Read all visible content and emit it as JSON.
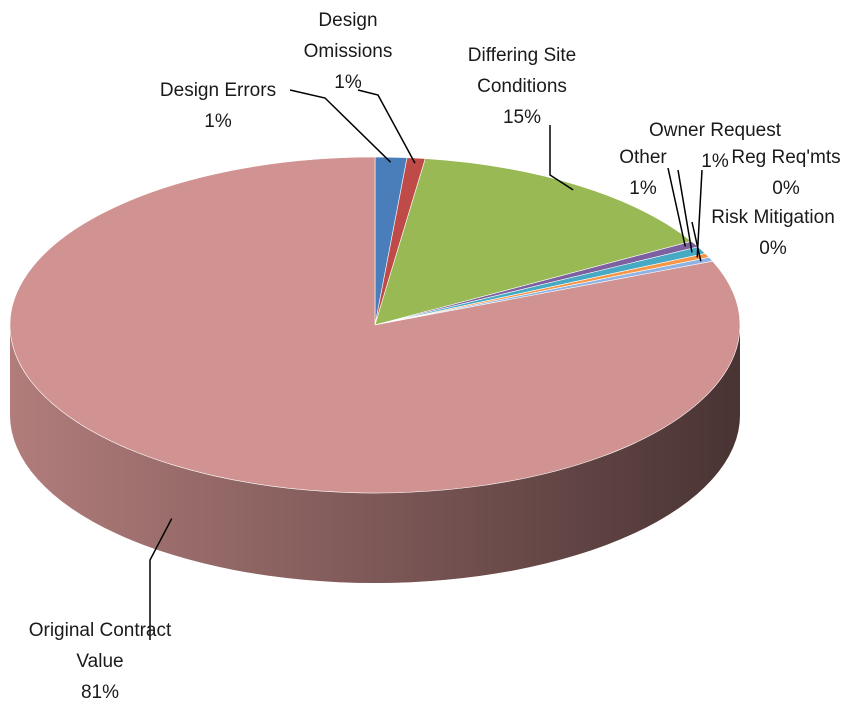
{
  "chart_data": {
    "type": "pie",
    "three_d": true,
    "categories": [
      "Design Errors",
      "Design Omissions",
      "Differing Site Conditions",
      "Other",
      "Owner Request",
      "Reg Req'mts",
      "Risk Mitigation",
      "Original Contract Value"
    ],
    "values": [
      1.4,
      0.8,
      14.5,
      0.6,
      0.7,
      0.4,
      0.4,
      81.2
    ],
    "value_labels": [
      "1%",
      "1%",
      "15%",
      "1%",
      "1%",
      "0%",
      "0%",
      "81%"
    ],
    "colors": [
      "#4a7ebb",
      "#be4b48",
      "#98b954",
      "#7d60a0",
      "#46aac5",
      "#f79646",
      "#8fb4e3",
      "#d09391"
    ]
  }
}
